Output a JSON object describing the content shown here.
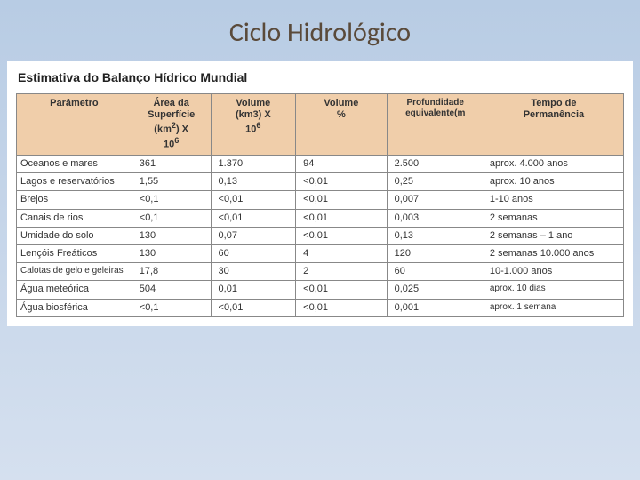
{
  "slide": {
    "title": "Ciclo Hidrológico",
    "title_color": "#5a4a3a",
    "title_fontsize": 30
  },
  "background": {
    "gradient_top": "#b8cce4",
    "gradient_bottom": "#d5e0ef"
  },
  "table": {
    "caption": "Estimativa do Balanço Hídrico Mundial",
    "header_bg": "#f0ceaa",
    "border_color": "#888888",
    "columns": [
      "Parâmetro",
      "Área da Superfície (km²) X 10⁶",
      "Volume (km3) X 10⁶",
      "Volume %",
      "Profundidade equivalente(m",
      "Tempo de Permanência"
    ],
    "rows": [
      {
        "param": "Oceanos e mares",
        "area": "361",
        "volume": "1.370",
        "vol_pct": "94",
        "prof": "2.500",
        "tempo": "aprox. 4.000 anos"
      },
      {
        "param": "Lagos e reservatórios",
        "area": "1,55",
        "volume": "0,13",
        "vol_pct": "<0,01",
        "prof": "0,25",
        "tempo": "aprox. 10 anos"
      },
      {
        "param": "Brejos",
        "area": "<0,1",
        "volume": "<0,01",
        "vol_pct": "<0,01",
        "prof": "0,007",
        "tempo": "1-10 anos"
      },
      {
        "param": "Canais de rios",
        "area": "<0,1",
        "volume": "<0,01",
        "vol_pct": "<0,01",
        "prof": "0,003",
        "tempo": "2 semanas"
      },
      {
        "param": "Umidade do solo",
        "area": "130",
        "volume": "0,07",
        "vol_pct": "<0,01",
        "prof": "0,13",
        "tempo": "2 semanas – 1 ano"
      },
      {
        "param": "Lençóis Freáticos",
        "area": "130",
        "volume": "60",
        "vol_pct": "4",
        "prof": "120",
        "tempo": "2 semanas 10.000 anos"
      },
      {
        "param": "Calotas de gelo e geleiras",
        "area": "17,8",
        "volume": "30",
        "vol_pct": "2",
        "prof": "60",
        "tempo": "10-1.000 anos",
        "small": true
      },
      {
        "param": "Água meteórica",
        "area": "504",
        "volume": "0,01",
        "vol_pct": "<0,01",
        "prof": "0,025",
        "tempo": "aprox. 10 dias",
        "tempo_small": true
      },
      {
        "param": "Água biosférica",
        "area": "<0,1",
        "volume": "<0,01",
        "vol_pct": "<0,01",
        "prof": "0,001",
        "tempo": "aprox. 1 semana",
        "tempo_small": true
      }
    ]
  }
}
